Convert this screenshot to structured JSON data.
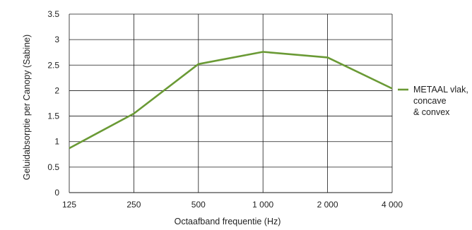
{
  "chart_data": {
    "type": "line",
    "title": "",
    "xlabel": "Octaafband frequentie (Hz)",
    "ylabel": "Geluidabsorptie per Canopy (Sabine)",
    "categories": [
      "125",
      "250",
      "500",
      "1 000",
      "2 000",
      "4 000"
    ],
    "yticks": [
      "0",
      "0.5",
      "1",
      "1.5",
      "2",
      "2.5",
      "3",
      "3.5"
    ],
    "ylim": [
      0,
      3.5
    ],
    "grid": true,
    "legend_position": "right",
    "series": [
      {
        "name_lines": [
          "METAAL vlak,",
          "concave",
          "& convex"
        ],
        "values": [
          0.87,
          1.55,
          2.52,
          2.76,
          2.65,
          2.04
        ],
        "color": "#6a9a35"
      }
    ]
  }
}
